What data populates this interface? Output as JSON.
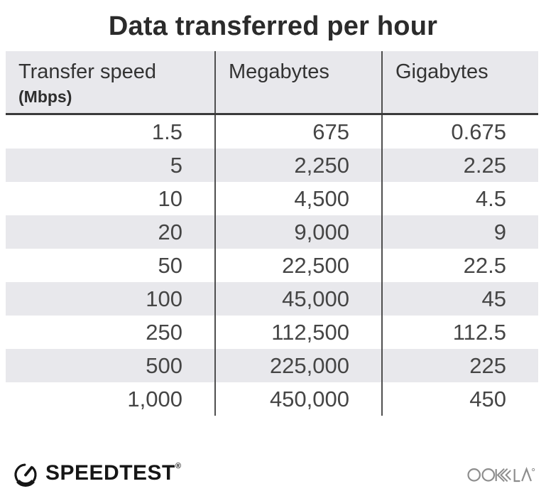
{
  "title": "Data transferred per hour",
  "table": {
    "columns": [
      {
        "label": "Transfer speed",
        "sublabel": "(Mbps)"
      },
      {
        "label": "Megabytes"
      },
      {
        "label": "Gigabytes"
      }
    ],
    "rows": [
      [
        "1.5",
        "675",
        "0.675"
      ],
      [
        "5",
        "2,250",
        "2.25"
      ],
      [
        "10",
        "4,500",
        "4.5"
      ],
      [
        "20",
        "9,000",
        "9"
      ],
      [
        "50",
        "22,500",
        "22.5"
      ],
      [
        "100",
        "45,000",
        "45"
      ],
      [
        "250",
        "112,500",
        "112.5"
      ],
      [
        "500",
        "225,000",
        "225"
      ],
      [
        "1,000",
        "450,000",
        "450"
      ]
    ]
  },
  "chart_data": {
    "type": "table",
    "title": "Data transferred per hour",
    "columns": [
      "Transfer speed (Mbps)",
      "Megabytes",
      "Gigabytes"
    ],
    "rows": [
      [
        1.5,
        675,
        0.675
      ],
      [
        5,
        2250,
        2.25
      ],
      [
        10,
        4500,
        4.5
      ],
      [
        20,
        9000,
        9
      ],
      [
        50,
        22500,
        22.5
      ],
      [
        100,
        45000,
        45
      ],
      [
        250,
        112500,
        112.5
      ],
      [
        500,
        225000,
        225
      ],
      [
        1000,
        450000,
        450
      ]
    ]
  },
  "footer": {
    "speedtest_label": "SPEEDTEST",
    "speedtest_trademark": "®",
    "ookla_label": "OOKLA"
  },
  "colors": {
    "header_bg": "#e8e8ec",
    "stripe_bg": "#e8e8ec",
    "divider": "#4f4f4f",
    "title_text": "#2b2b2b",
    "cell_text": "#454545",
    "speedtest_black": "#161616",
    "ookla_gray": "#8d8d8d"
  }
}
